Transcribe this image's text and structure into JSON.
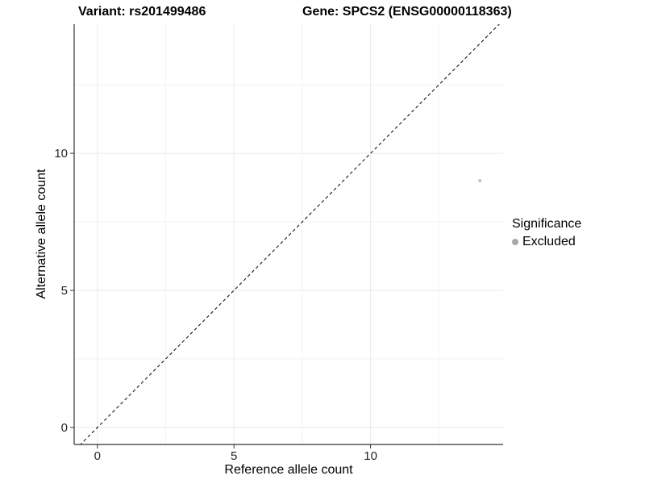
{
  "chart_data": {
    "type": "scatter",
    "title_variant": "Variant: rs201499486",
    "title_gene": "Gene: SPCS2 (ENSG00000118363)",
    "xlabel": "Reference allele count",
    "ylabel": "Alternative allele count",
    "x_ticks": [
      0,
      5,
      10
    ],
    "y_ticks": [
      0,
      5,
      10
    ],
    "x_minor_ticks": [
      2.5,
      7.5,
      12.5
    ],
    "y_minor_ticks": [
      2.5,
      7.5,
      12.5
    ],
    "x_domain": [
      -0.85,
      14.85
    ],
    "y_domain": [
      -0.62,
      14.71
    ],
    "grid": true,
    "points": [
      {
        "x": 14,
        "y": 9,
        "significance": "Excluded"
      }
    ],
    "point_radius": 2,
    "identity_line": {
      "slope": 1,
      "intercept": 0,
      "style": "dashed",
      "color": "#000000"
    },
    "legend": {
      "title": "Significance",
      "position": "right",
      "items": [
        {
          "label": "Excluded",
          "color": "#a9a9a9"
        }
      ]
    },
    "colors": {
      "point": "#c2c2c2",
      "grid_major": "#e9e9e9",
      "grid_minor": "#f3f3f3",
      "axis_line": "#333333",
      "tick_mark": "#333333",
      "tick_label": "#262626"
    }
  }
}
